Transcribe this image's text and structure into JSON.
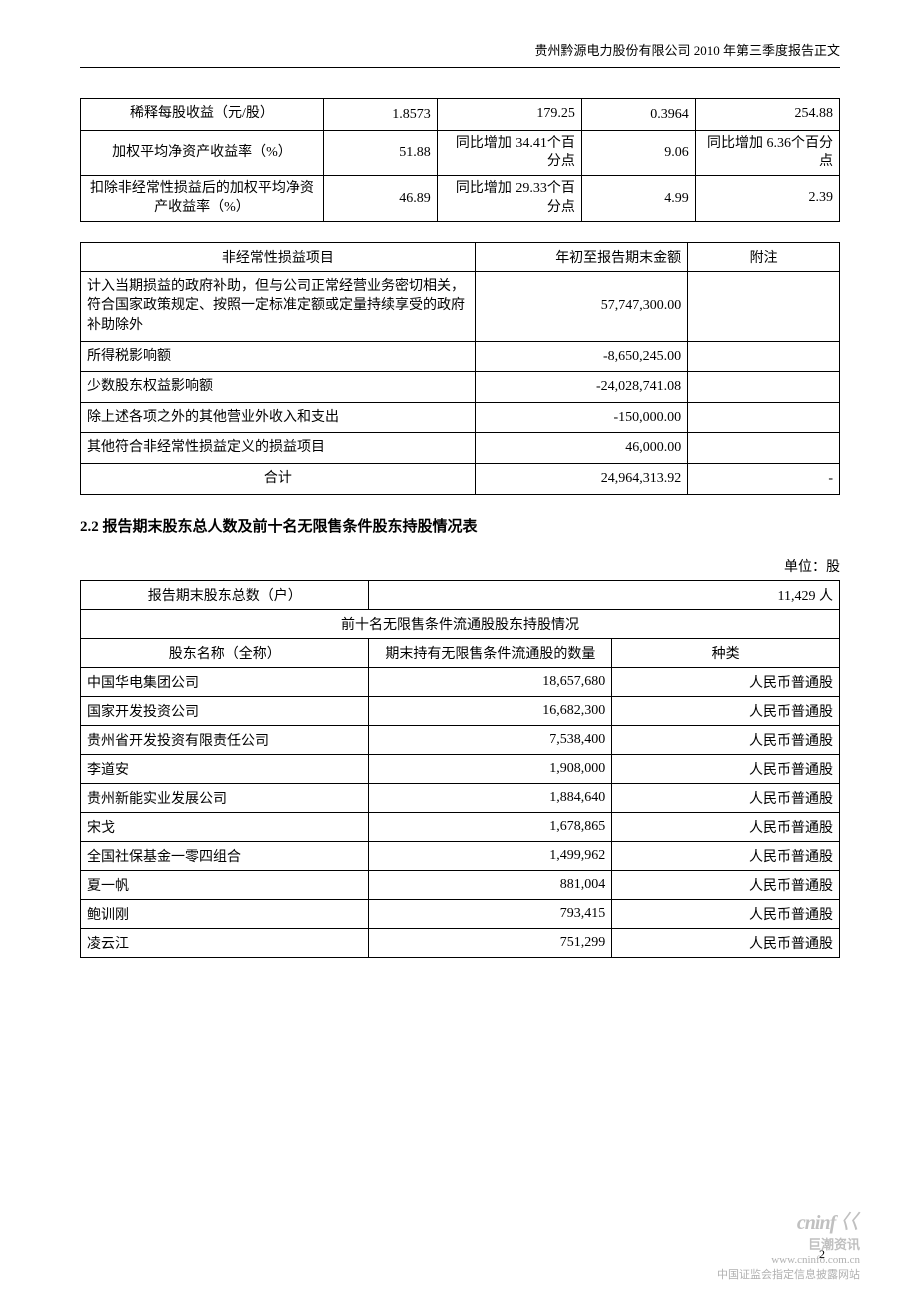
{
  "header": {
    "text": "贵州黔源电力股份有限公司 2010 年第三季度报告正文"
  },
  "table1": {
    "rows": [
      {
        "label": "稀释每股收益（元/股）",
        "c2": "1.8573",
        "c3": "179.25",
        "c4": "0.3964",
        "c5": "254.88"
      },
      {
        "label": "加权平均净资产收益率（%）",
        "c2": "51.88",
        "c3": "同比增加 34.41个百分点",
        "c4": "9.06",
        "c5": "同比增加 6.36个百分点"
      },
      {
        "label": "扣除非经常性损益后的加权平均净资产收益率（%）",
        "c2": "46.89",
        "c3": "同比增加 29.33个百分点",
        "c4": "4.99",
        "c5": "2.39"
      }
    ]
  },
  "table2": {
    "headers": {
      "h1": "非经常性损益项目",
      "h2": "年初至报告期末金额",
      "h3": "附注"
    },
    "rows": [
      {
        "item": "计入当期损益的政府补助，但与公司正常经营业务密切相关，符合国家政策规定、按照一定标准定额或定量持续享受的政府补助除外",
        "amount": "57,747,300.00",
        "note": ""
      },
      {
        "item": "所得税影响额",
        "amount": "-8,650,245.00",
        "note": ""
      },
      {
        "item": "少数股东权益影响额",
        "amount": "-24,028,741.08",
        "note": ""
      },
      {
        "item": "除上述各项之外的其他营业外收入和支出",
        "amount": "-150,000.00",
        "note": ""
      },
      {
        "item": "其他符合非经常性损益定义的损益项目",
        "amount": "46,000.00",
        "note": ""
      }
    ],
    "total": {
      "label": "合计",
      "amount": "24,964,313.92",
      "note": "-"
    }
  },
  "section": {
    "heading": "2.2  报告期末股东总人数及前十名无限售条件股东持股情况表",
    "unit": "单位：股"
  },
  "table3": {
    "total_shareholders": {
      "label": "报告期末股东总数（户）",
      "value": "11,429 人"
    },
    "sub_header": "前十名无限售条件流通股股东持股情况",
    "col_headers": {
      "name": "股东名称（全称）",
      "qty": "期末持有无限售条件流通股的数量",
      "type": "种类"
    },
    "rows": [
      {
        "name": "中国华电集团公司",
        "qty": "18,657,680",
        "type": "人民币普通股"
      },
      {
        "name": "国家开发投资公司",
        "qty": "16,682,300",
        "type": "人民币普通股"
      },
      {
        "name": "贵州省开发投资有限责任公司",
        "qty": "7,538,400",
        "type": "人民币普通股"
      },
      {
        "name": "李道安",
        "qty": "1,908,000",
        "type": "人民币普通股"
      },
      {
        "name": "贵州新能实业发展公司",
        "qty": "1,884,640",
        "type": "人民币普通股"
      },
      {
        "name": "宋戈",
        "qty": "1,678,865",
        "type": "人民币普通股"
      },
      {
        "name": "全国社保基金一零四组合",
        "qty": "1,499,962",
        "type": "人民币普通股"
      },
      {
        "name": "夏一帆",
        "qty": "881,004",
        "type": "人民币普通股"
      },
      {
        "name": "鲍训刚",
        "qty": "793,415",
        "type": "人民币普通股"
      },
      {
        "name": "凌云江",
        "qty": "751,299",
        "type": "人民币普通股"
      }
    ]
  },
  "page_number": "2",
  "watermark": {
    "logo": "cninf",
    "logo_cn": "巨潮资讯",
    "url": "www.cninfo.com.cn",
    "desc": "中国证监会指定信息披露网站"
  }
}
